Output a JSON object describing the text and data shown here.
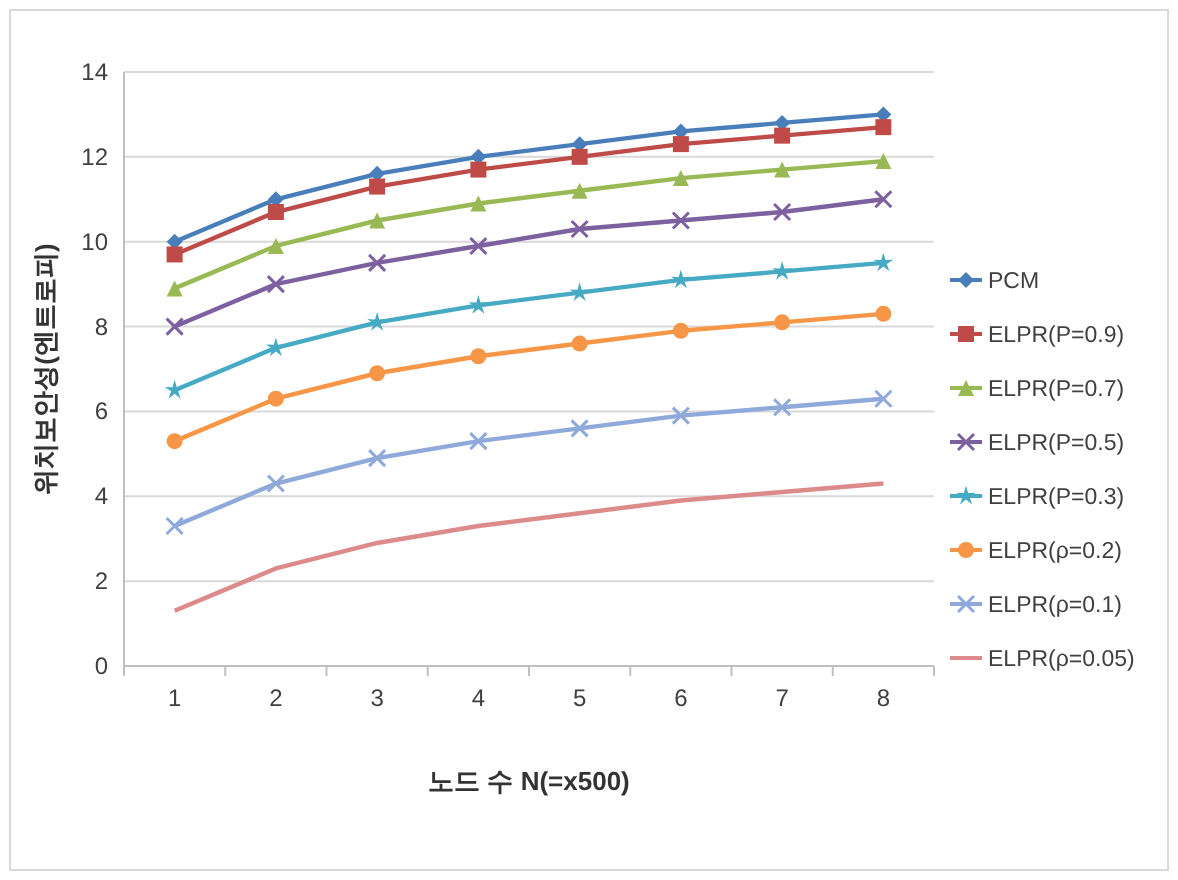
{
  "chart_data": {
    "type": "line",
    "xlabel": "노드 수 N(=x500)",
    "ylabel": "위치보안성(엔트로피)",
    "categories": [
      "1",
      "2",
      "3",
      "4",
      "5",
      "6",
      "7",
      "8"
    ],
    "ylim": [
      0,
      14
    ],
    "yticks": [
      0,
      2,
      4,
      6,
      8,
      10,
      12,
      14
    ],
    "grid": "y",
    "legend": "right",
    "series": [
      {
        "name": "PCM",
        "color": "#4a7ebb",
        "marker": "diamond",
        "values": [
          10.0,
          11.0,
          11.6,
          12.0,
          12.3,
          12.6,
          12.8,
          13.0
        ]
      },
      {
        "name": "ELPR(Ρ=0.9)",
        "color": "#be4b48",
        "marker": "square",
        "values": [
          9.7,
          10.7,
          11.3,
          11.7,
          12.0,
          12.3,
          12.5,
          12.7
        ]
      },
      {
        "name": "ELPR(Ρ=0.7)",
        "color": "#98b954",
        "marker": "triangle",
        "values": [
          8.9,
          9.9,
          10.5,
          10.9,
          11.2,
          11.5,
          11.7,
          11.9
        ]
      },
      {
        "name": "ELPR(Ρ=0.5)",
        "color": "#7d60a0",
        "marker": "cross",
        "values": [
          8.0,
          9.0,
          9.5,
          9.9,
          10.3,
          10.5,
          10.7,
          11.0
        ]
      },
      {
        "name": "ELPR(Ρ=0.3)",
        "color": "#46aac5",
        "marker": "star",
        "values": [
          6.5,
          7.5,
          8.1,
          8.5,
          8.8,
          9.1,
          9.3,
          9.5
        ]
      },
      {
        "name": "ELPR(ρ=0.2)",
        "color": "#f79646",
        "marker": "circle",
        "values": [
          5.3,
          6.3,
          6.9,
          7.3,
          7.6,
          7.9,
          8.1,
          8.3
        ]
      },
      {
        "name": "ELPR(ρ=0.1)",
        "color": "#8fa9db",
        "marker": "cross",
        "values": [
          3.3,
          4.3,
          4.9,
          5.3,
          5.6,
          5.9,
          6.1,
          6.3
        ]
      },
      {
        "name": "ELPR(ρ=0.05)",
        "color": "#dc8a8a",
        "marker": "none",
        "values": [
          1.3,
          2.3,
          2.9,
          3.3,
          3.6,
          3.9,
          4.1,
          4.3
        ]
      }
    ]
  }
}
